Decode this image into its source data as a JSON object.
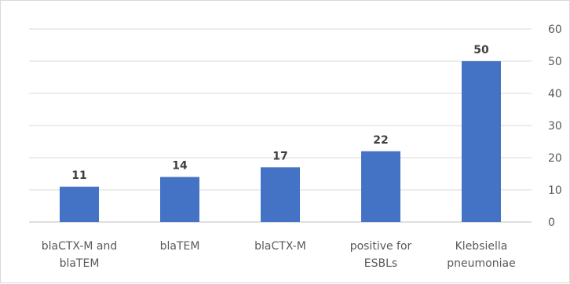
{
  "chart_data": {
    "type": "bar",
    "title": "",
    "xlabel": "",
    "ylabel": "",
    "y_axis_position": "right",
    "ylim": [
      0,
      60
    ],
    "yticks": [
      0,
      10,
      20,
      30,
      40,
      50,
      60
    ],
    "grid": true,
    "legend": "none",
    "bar_color": "#4472c4",
    "categories": [
      [
        "blaCTX-M and",
        "blaTEM"
      ],
      [
        "blaTEM"
      ],
      [
        "blaCTX-M"
      ],
      [
        "positive for",
        "ESBLs"
      ],
      [
        "Klebsiella",
        "pneumoniae"
      ]
    ],
    "values": [
      11,
      14,
      17,
      22,
      50
    ]
  }
}
